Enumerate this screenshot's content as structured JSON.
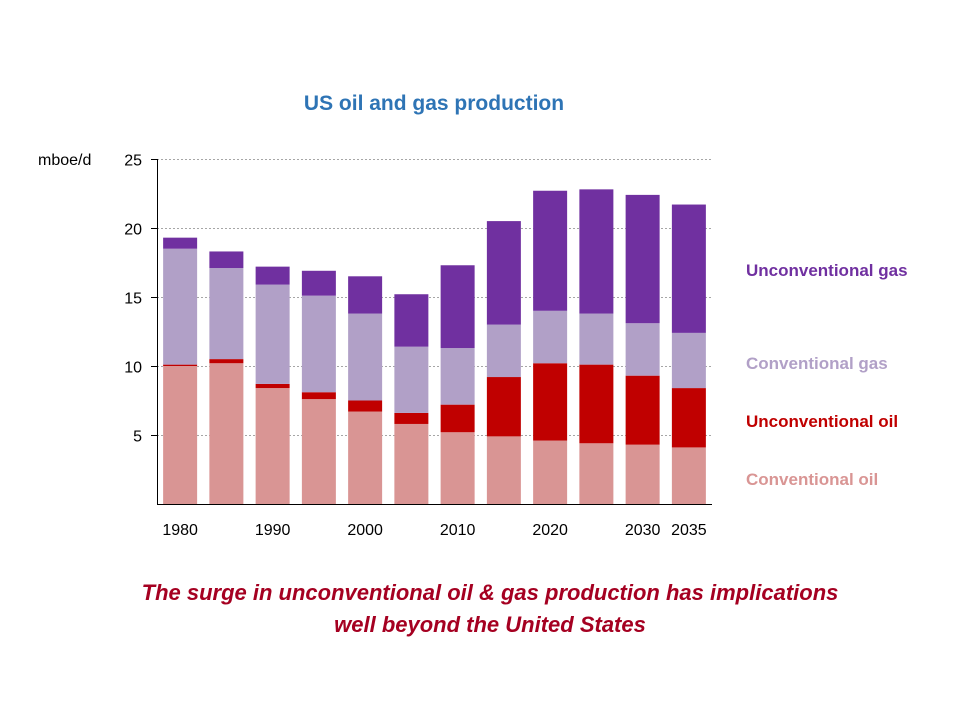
{
  "chart_data": {
    "type": "bar",
    "stacked": true,
    "title": "US oil and gas production",
    "ylabel": "mboe/d",
    "ylim": [
      0,
      25
    ],
    "yticks": [
      5,
      10,
      15,
      20,
      25
    ],
    "grid": true,
    "legend_placement": "right",
    "x_tick_labels": [
      "1980",
      "1990",
      "2000",
      "2010",
      "2020",
      "2030",
      "2035"
    ],
    "categories": [
      "1980",
      "1985",
      "1990",
      "1995",
      "2000",
      "2005",
      "2010",
      "2015",
      "2020",
      "2025",
      "2030",
      "2035"
    ],
    "series": [
      {
        "name": "Conventional oil",
        "color": "#d99594",
        "values": [
          10.0,
          10.2,
          8.4,
          7.6,
          6.7,
          5.8,
          5.2,
          4.9,
          4.6,
          4.4,
          4.3,
          4.1
        ]
      },
      {
        "name": "Unconventional oil",
        "color": "#c00000",
        "values": [
          0.1,
          0.3,
          0.3,
          0.5,
          0.8,
          0.8,
          2.0,
          4.3,
          5.6,
          5.7,
          5.0,
          4.3
        ]
      },
      {
        "name": "Conventional gas",
        "color": "#b1a0c7",
        "values": [
          8.4,
          6.6,
          7.2,
          7.0,
          6.3,
          4.8,
          4.1,
          3.8,
          3.8,
          3.7,
          3.8,
          4.0
        ]
      },
      {
        "name": "Unconventional gas",
        "color": "#7030a0",
        "values": [
          0.8,
          1.2,
          1.3,
          1.8,
          2.7,
          3.8,
          6.0,
          7.5,
          8.7,
          9.0,
          9.3,
          9.3
        ]
      }
    ]
  },
  "caption_lines": [
    "The surge in unconventional oil & gas production has implications",
    "well beyond the United States"
  ]
}
